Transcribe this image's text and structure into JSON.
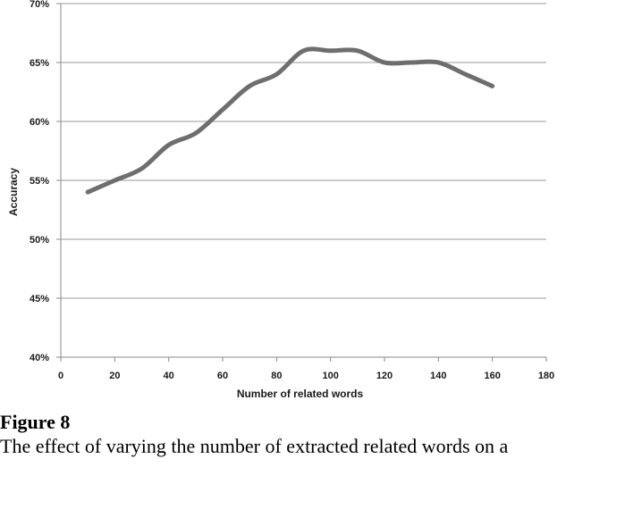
{
  "chart_data": {
    "type": "line",
    "xlabel": "Number of related words",
    "ylabel": "Accuracy",
    "xlim": [
      0,
      180
    ],
    "ylim": [
      40,
      70
    ],
    "x_ticks": [
      0,
      20,
      40,
      60,
      80,
      100,
      120,
      140,
      160,
      180
    ],
    "y_ticks": [
      40,
      45,
      50,
      55,
      60,
      65,
      70
    ],
    "y_tick_labels": [
      "40%",
      "45%",
      "50%",
      "55%",
      "60%",
      "65%",
      "70%"
    ],
    "grid": "horizontal",
    "series_color": "#6e6e6e",
    "series": [
      {
        "x": [
          10,
          20,
          30,
          40,
          50,
          60,
          70,
          80,
          90,
          100,
          110,
          120,
          130,
          140,
          150,
          160
        ],
        "values": [
          54,
          55,
          56,
          58,
          59,
          61,
          63,
          64,
          66,
          66,
          66,
          65,
          65,
          65,
          64,
          63
        ]
      }
    ]
  },
  "figure": {
    "label": "Figure 8",
    "caption": "The effect of varying the number of extracted related words on a"
  }
}
